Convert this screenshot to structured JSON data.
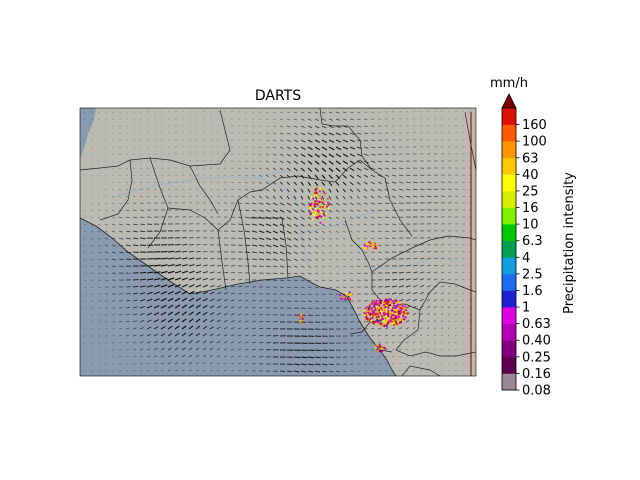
{
  "map": {
    "title": "DARTS",
    "colors": {
      "land": "#bbbbb3",
      "ocean": "#8a9aaf",
      "river": "#9fb3c8",
      "border": "#222222",
      "arrow": "#111111"
    }
  },
  "colorbar": {
    "unit": "mm/h",
    "label": "Precipitation intensity",
    "extend": "max",
    "extend_color": "#7a0000",
    "levels": [
      {
        "label": "0.08",
        "color": "#9c8892"
      },
      {
        "label": "0.16",
        "color": "#5c004f"
      },
      {
        "label": "0.25",
        "color": "#80007f"
      },
      {
        "label": "0.40",
        "color": "#b600b6"
      },
      {
        "label": "0.63",
        "color": "#e000e0"
      },
      {
        "label": "1",
        "color": "#2020d0"
      },
      {
        "label": "1.6",
        "color": "#1a6eee"
      },
      {
        "label": "2.5",
        "color": "#10a0e0"
      },
      {
        "label": "4",
        "color": "#00a050"
      },
      {
        "label": "6.3",
        "color": "#00c800"
      },
      {
        "label": "10",
        "color": "#80f000"
      },
      {
        "label": "16",
        "color": "#d8f000"
      },
      {
        "label": "25",
        "color": "#ffff00"
      },
      {
        "label": "40",
        "color": "#ffc800"
      },
      {
        "label": "63",
        "color": "#ff9600"
      },
      {
        "label": "100",
        "color": "#ff5a00"
      },
      {
        "label": "160",
        "color": "#dd1100"
      }
    ]
  }
}
